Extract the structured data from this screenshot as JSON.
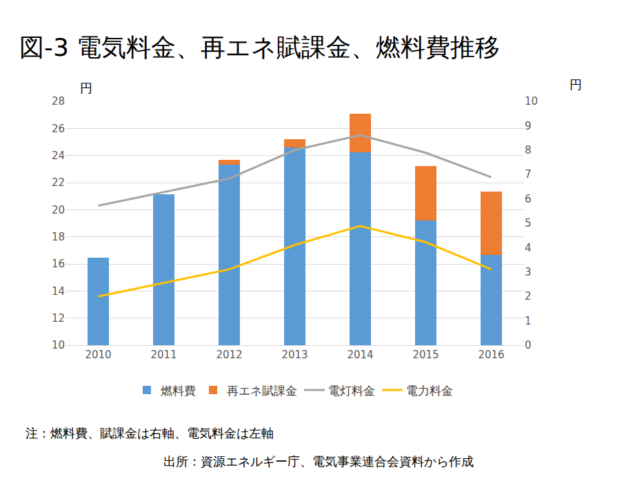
{
  "chart_data": {
    "type": "bar",
    "title": "図-3 電気料金、再エネ賦課金、燃料費推移",
    "y_label": "円",
    "y2_label": "円",
    "annotations": [
      "注：燃料費、賦課金は右軸、電気料金は左軸",
      "出所：資源エネルギー庁、電気事業連合会資料から作成"
    ],
    "categories": [
      "2010",
      "2011",
      "2012",
      "2013",
      "2014",
      "2015",
      "2016"
    ],
    "stacked": true,
    "grid": true,
    "legend": "bottom",
    "ylim": [
      10,
      28
    ],
    "yticks": [
      10,
      12,
      14,
      16,
      18,
      20,
      22,
      24,
      26,
      28
    ],
    "y2lim": [
      0,
      10
    ],
    "y2ticks": [
      0,
      1,
      2,
      3,
      4,
      5,
      6,
      7,
      8,
      9,
      10
    ],
    "series": [
      {
        "name": "燃料費",
        "type": "bar",
        "axis": "y2",
        "color": "#5B9BD5",
        "values": [
          3.6,
          6.2,
          7.4,
          8.1,
          7.9,
          5.1,
          3.7
        ]
      },
      {
        "name": "再エネ賦課金",
        "type": "bar",
        "axis": "y2",
        "color": "#ED7D31",
        "values": [
          0,
          0,
          0.2,
          0.36,
          1.6,
          2.25,
          2.6
        ]
      },
      {
        "name": "電灯料金",
        "type": "line",
        "axis": "y",
        "color": "#A5A5A5",
        "values": [
          20.3,
          21.3,
          22.3,
          24.4,
          25.5,
          24.2,
          22.4
        ]
      },
      {
        "name": "電力料金",
        "type": "line",
        "axis": "y",
        "color": "#FFC000",
        "values": [
          13.6,
          14.6,
          15.6,
          17.4,
          18.8,
          17.6,
          15.6
        ]
      }
    ]
  }
}
